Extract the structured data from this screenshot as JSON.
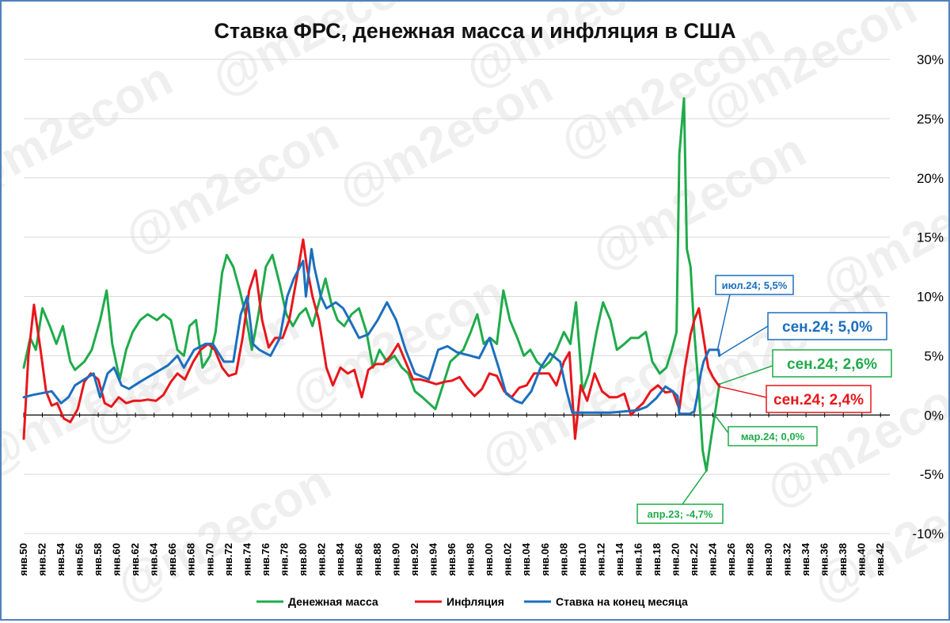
{
  "chart_data": {
    "type": "line",
    "title": "Ставка ФРС, денежная масса и инфляция в США",
    "watermark": "@m2econ",
    "ylim": [
      -10,
      30
    ],
    "xlim": [
      1950,
      2043
    ],
    "y_ticks": [
      -10,
      -5,
      0,
      5,
      10,
      15,
      20,
      25,
      30
    ],
    "y_tick_labels": [
      "-10%",
      "-5%",
      "0%",
      "5%",
      "10%",
      "15%",
      "20%",
      "25%",
      "30%"
    ],
    "x_ticks": [
      1950,
      1952,
      1954,
      1956,
      1958,
      1960,
      1962,
      1964,
      1966,
      1968,
      1970,
      1972,
      1974,
      1976,
      1978,
      1980,
      1982,
      1984,
      1986,
      1988,
      1990,
      1992,
      1994,
      1996,
      1998,
      2000,
      2002,
      2004,
      2006,
      2008,
      2010,
      2012,
      2014,
      2016,
      2018,
      2020,
      2022,
      2024,
      2026,
      2028,
      2030,
      2032,
      2034,
      2036,
      2038,
      2040,
      2042
    ],
    "x_tick_labels": [
      "янв.50",
      "янв.52",
      "янв.54",
      "янв.56",
      "янв.58",
      "янв.60",
      "янв.62",
      "янв.64",
      "янв.66",
      "янв.68",
      "янв.70",
      "янв.72",
      "янв.74",
      "янв.76",
      "янв.78",
      "янв.80",
      "янв.82",
      "янв.84",
      "янв.86",
      "янв.88",
      "янв.90",
      "янв.92",
      "янв.94",
      "янв.96",
      "янв.98",
      "янв.00",
      "янв.02",
      "янв.04",
      "янв.06",
      "янв.08",
      "янв.10",
      "янв.12",
      "янв.14",
      "янв.16",
      "янв.18",
      "янв.20",
      "янв.22",
      "янв.24",
      "янв.26",
      "янв.28",
      "янв.30",
      "янв.32",
      "янв.34",
      "янв.36",
      "янв.38",
      "янв.40",
      "янв.42"
    ],
    "grid": "horizontal",
    "legend_position": "bottom",
    "series": [
      {
        "name": "Денежная масса",
        "color": "#1fab4a",
        "x": [
          1950,
          1950.7,
          1951.3,
          1952,
          1952.8,
          1953.5,
          1954.2,
          1955,
          1955.5,
          1956.5,
          1957.3,
          1958.2,
          1958.9,
          1959.5,
          1960.3,
          1961,
          1961.7,
          1962.5,
          1963.3,
          1964.3,
          1965,
          1965.8,
          1966.5,
          1967.2,
          1967.8,
          1968.5,
          1969.2,
          1970,
          1970.6,
          1971.3,
          1971.8,
          1972.5,
          1973.2,
          1973.8,
          1974.5,
          1975.2,
          1976,
          1976.7,
          1977.5,
          1978.2,
          1978.9,
          1979.6,
          1980.3,
          1981,
          1981.7,
          1982.4,
          1983,
          1983.7,
          1984.4,
          1985.2,
          1986,
          1986.8,
          1987.5,
          1988.2,
          1989,
          1989.8,
          1990.6,
          1991.3,
          1992,
          1992.8,
          1993.5,
          1994.2,
          1995,
          1995.8,
          1996.5,
          1997.2,
          1998,
          1998.7,
          1999.4,
          2000.1,
          2000.8,
          2001.5,
          2002.2,
          2003,
          2003.7,
          2004.4,
          2005.1,
          2005.8,
          2006.5,
          2007.2,
          2008,
          2008.7,
          2009.3,
          2010,
          2010.7,
          2011.5,
          2012.2,
          2013,
          2013.7,
          2014.5,
          2015.2,
          2016,
          2016.8,
          2017.5,
          2018.3,
          2019,
          2019.6,
          2020.1,
          2020.4,
          2020.9,
          2021.2,
          2021.6,
          2022,
          2022.5,
          2022.9,
          2023.3,
          2023.7,
          2024.2,
          2024.7
        ],
        "y": [
          4.0,
          6.5,
          5.5,
          9.0,
          7.5,
          6.0,
          7.5,
          4.5,
          3.8,
          4.5,
          5.5,
          8.0,
          10.5,
          6.0,
          3.0,
          5.5,
          7.0,
          8.0,
          8.5,
          8.0,
          8.5,
          8.0,
          5.5,
          5.0,
          7.5,
          8.0,
          4.0,
          5.0,
          7.0,
          12.0,
          13.5,
          12.5,
          10.5,
          8.5,
          5.5,
          8.5,
          12.5,
          13.5,
          11.0,
          8.5,
          7.5,
          8.5,
          9.0,
          7.5,
          9.5,
          11.5,
          9.5,
          8.0,
          7.5,
          8.5,
          9.0,
          7.0,
          4.0,
          5.5,
          4.5,
          5.0,
          4.0,
          3.5,
          2.0,
          1.5,
          1.0,
          0.5,
          2.5,
          4.5,
          5.0,
          5.5,
          7.0,
          8.5,
          6.0,
          6.5,
          6.0,
          10.5,
          8.0,
          6.5,
          5.0,
          5.5,
          4.5,
          4.0,
          4.5,
          5.5,
          7.0,
          6.0,
          9.5,
          2.0,
          3.5,
          7.0,
          9.5,
          8.0,
          5.5,
          6.0,
          6.5,
          6.5,
          7.0,
          4.5,
          3.5,
          4.0,
          5.5,
          7.0,
          22.0,
          26.7,
          14.0,
          12.5,
          7.0,
          2.0,
          -3.0,
          -4.7,
          -2.5,
          0.0,
          2.6
        ]
      },
      {
        "name": "Инфляция",
        "color": "#e8161b",
        "x": [
          1950,
          1950.5,
          1951.1,
          1951.8,
          1952.4,
          1953,
          1953.6,
          1954.3,
          1955,
          1955.8,
          1956.5,
          1957.2,
          1958,
          1958.7,
          1959.4,
          1960.2,
          1961,
          1961.8,
          1962.5,
          1963.3,
          1964.2,
          1965,
          1965.8,
          1966.5,
          1967.3,
          1968.2,
          1969,
          1969.8,
          1970.5,
          1971.3,
          1972,
          1972.8,
          1973.5,
          1974.2,
          1974.9,
          1975.6,
          1976.3,
          1977,
          1977.8,
          1978.5,
          1979.3,
          1980,
          1980.4,
          1981,
          1981.7,
          1982.5,
          1983.2,
          1984,
          1984.8,
          1985.5,
          1986.3,
          1987,
          1987.8,
          1988.6,
          1989.4,
          1990.2,
          1991,
          1991.8,
          1992.6,
          1993.5,
          1994.3,
          1995.2,
          1996,
          1996.8,
          1997.6,
          1998.4,
          1999.2,
          2000,
          2000.8,
          2001.6,
          2002.4,
          2003.2,
          2004,
          2004.8,
          2005.6,
          2006.4,
          2007.2,
          2008,
          2008.6,
          2009.2,
          2009.8,
          2010.5,
          2011.3,
          2012.1,
          2012.9,
          2013.7,
          2014.5,
          2015.2,
          2015.8,
          2016.5,
          2017.3,
          2018.1,
          2018.9,
          2019.7,
          2020.4,
          2021,
          2021.6,
          2022,
          2022.5,
          2023,
          2023.5,
          2024,
          2024.7
        ],
        "y": [
          -2.0,
          5.0,
          9.3,
          5.5,
          2.0,
          0.8,
          1.0,
          -0.3,
          -0.6,
          0.5,
          2.8,
          3.5,
          3.0,
          1.0,
          0.7,
          1.5,
          1.0,
          1.2,
          1.2,
          1.3,
          1.2,
          1.7,
          2.8,
          3.5,
          3.0,
          4.5,
          5.5,
          6.0,
          5.5,
          4.0,
          3.3,
          3.5,
          6.5,
          10.5,
          12.2,
          8.0,
          5.7,
          6.5,
          6.5,
          8.0,
          11.5,
          14.8,
          12.5,
          10.0,
          8.0,
          4.0,
          2.5,
          4.0,
          3.5,
          3.8,
          1.5,
          3.8,
          4.3,
          4.3,
          5.0,
          6.0,
          4.5,
          3.0,
          3.0,
          2.8,
          2.6,
          2.8,
          2.9,
          3.2,
          2.3,
          1.6,
          2.2,
          3.5,
          3.3,
          2.0,
          1.5,
          2.3,
          2.5,
          3.5,
          3.5,
          3.5,
          2.5,
          4.5,
          5.3,
          -2.0,
          2.5,
          1.2,
          3.5,
          2.0,
          1.5,
          1.5,
          1.8,
          0.0,
          0.5,
          1.0,
          2.0,
          2.5,
          1.9,
          2.0,
          0.5,
          4.0,
          6.8,
          8.0,
          9.0,
          6.5,
          4.0,
          3.2,
          2.4
        ]
      },
      {
        "name": "Ставка на конец месяца",
        "color": "#1c6fbe",
        "x": [
          1950,
          1951,
          1953,
          1954,
          1954.8,
          1955.5,
          1956.5,
          1957.5,
          1958.2,
          1959,
          1959.7,
          1960.5,
          1961.3,
          1962.5,
          1964,
          1965.5,
          1966.5,
          1967.2,
          1968.3,
          1969.5,
          1970.3,
          1971.5,
          1972.5,
          1973.3,
          1974,
          1974.6,
          1975.3,
          1976.5,
          1977.5,
          1978.3,
          1979,
          1980,
          1980.3,
          1980.9,
          1981.2,
          1981.9,
          1982.5,
          1983.5,
          1984.3,
          1985,
          1986,
          1987,
          1988,
          1989,
          1990,
          1991,
          1992,
          1993.5,
          1994.5,
          1995.5,
          1996.5,
          1998,
          1998.9,
          2000,
          2001,
          2001.8,
          2002.8,
          2003.5,
          2004.5,
          2005.5,
          2006.5,
          2007.6,
          2008.3,
          2008.9,
          2009.5,
          2011,
          2013,
          2015.9,
          2016.9,
          2017.9,
          2018.9,
          2019.7,
          2020.2,
          2020.4,
          2021.5,
          2022,
          2022.3,
          2022.7,
          2023,
          2023.6,
          2024.6,
          2024.7
        ],
        "y": [
          1.5,
          1.7,
          2.0,
          1.0,
          1.5,
          2.5,
          3.0,
          3.5,
          1.5,
          3.5,
          4.0,
          2.5,
          2.2,
          2.8,
          3.5,
          4.2,
          5.0,
          4.0,
          5.5,
          6.0,
          6.0,
          4.5,
          4.5,
          8.5,
          10.0,
          6.0,
          5.5,
          5.0,
          6.5,
          10.0,
          11.5,
          13.0,
          10.0,
          14.0,
          12.5,
          10.0,
          9.0,
          9.5,
          9.0,
          8.0,
          6.5,
          6.8,
          8.0,
          9.5,
          8.0,
          5.5,
          3.5,
          3.0,
          5.5,
          5.8,
          5.3,
          5.0,
          4.8,
          6.5,
          4.0,
          1.8,
          1.2,
          1.0,
          2.0,
          4.0,
          5.2,
          4.5,
          2.0,
          0.2,
          0.2,
          0.2,
          0.2,
          0.4,
          0.7,
          1.4,
          2.4,
          2.0,
          1.6,
          0.1,
          0.1,
          0.3,
          1.5,
          3.5,
          4.5,
          5.5,
          5.5,
          5.0
        ]
      }
    ],
    "annotations": [
      {
        "text": "июл.24; 5,5%",
        "color": "#1c6fbe",
        "size": "small"
      },
      {
        "text": "сен.24; 5,0%",
        "color": "#1c6fbe",
        "size": "big"
      },
      {
        "text": "сен.24; 2,6%",
        "color": "#1fab4a",
        "size": "big"
      },
      {
        "text": "сен.24; 2,4%",
        "color": "#e8161b",
        "size": "big"
      },
      {
        "text": "мар.24; 0,0%",
        "color": "#1fab4a",
        "size": "small"
      },
      {
        "text": "апр.23; -4,7%",
        "color": "#1fab4a",
        "size": "small"
      }
    ]
  }
}
